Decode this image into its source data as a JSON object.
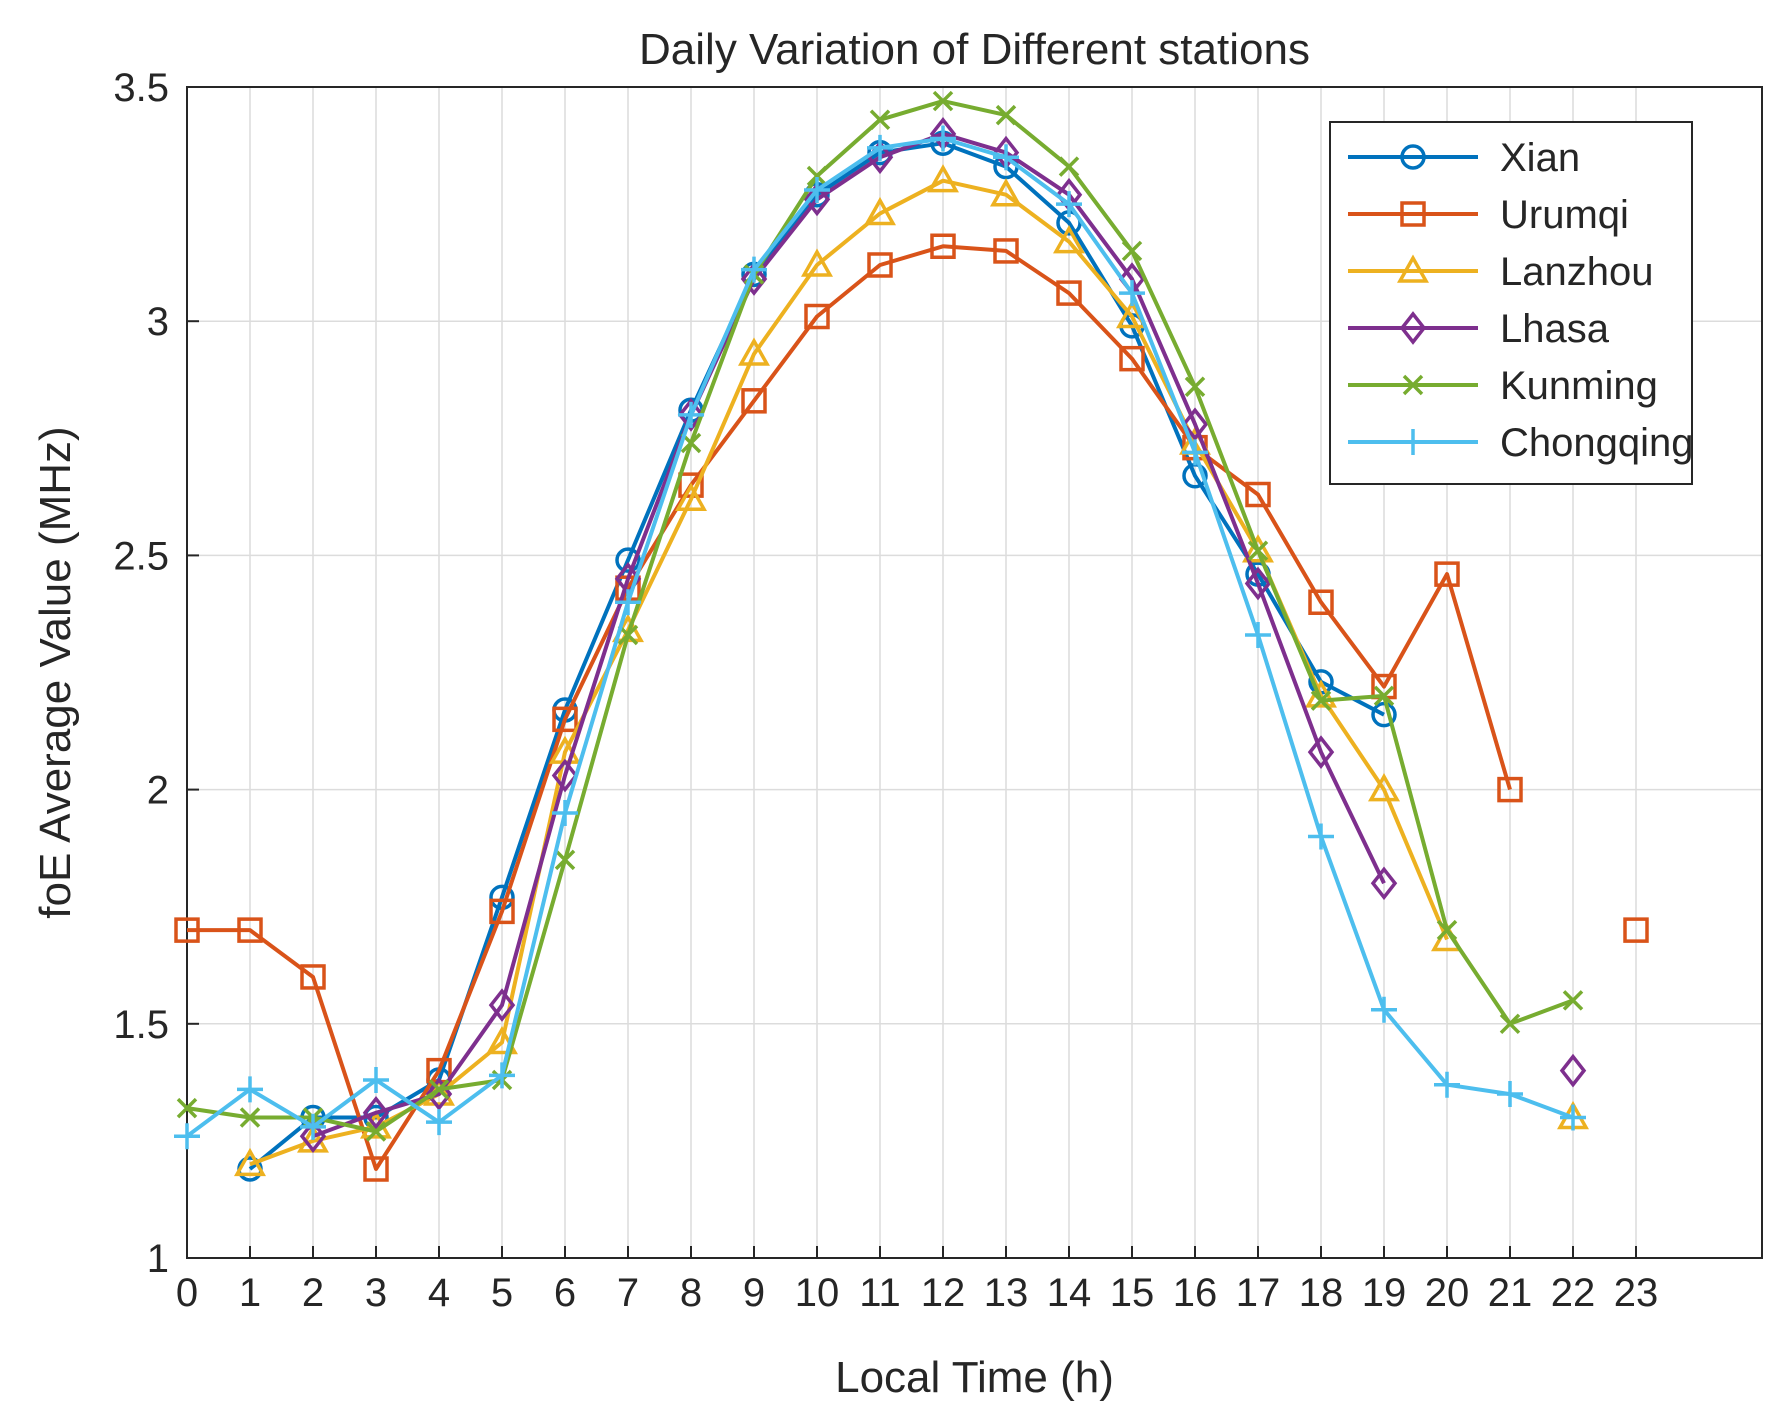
{
  "chart_data": {
    "type": "line",
    "title": "Daily Variation of Different stations",
    "xlabel": "Local Time (h)",
    "ylabel": "foE Average Value (MHz)",
    "xlim": [
      0,
      25
    ],
    "ylim": [
      1,
      3.5
    ],
    "grid": true,
    "legend_position": "top-right",
    "x_ticks": [
      0,
      1,
      2,
      3,
      4,
      5,
      6,
      7,
      8,
      9,
      10,
      11,
      12,
      13,
      14,
      15,
      16,
      17,
      18,
      19,
      20,
      21,
      22,
      23
    ],
    "y_ticks": [
      1,
      1.5,
      2,
      2.5,
      3,
      3.5
    ],
    "y_tick_labels": [
      "1",
      "1.5",
      "2",
      "2.5",
      "3",
      "3.5"
    ],
    "series": [
      {
        "name": "Xian",
        "color": "#0072BD",
        "marker": "circle",
        "x": [
          1,
          2,
          3,
          4,
          5,
          6,
          7,
          8,
          9,
          10,
          11,
          12,
          13,
          14,
          15,
          16,
          17,
          18,
          19
        ],
        "values": [
          1.19,
          1.3,
          1.3,
          1.38,
          1.77,
          2.17,
          2.49,
          2.81,
          3.1,
          3.27,
          3.36,
          3.38,
          3.33,
          3.21,
          2.99,
          2.67,
          2.46,
          2.23,
          2.16
        ]
      },
      {
        "name": "Urumqi",
        "color": "#D95319",
        "marker": "square",
        "x": [
          0,
          1,
          2,
          3,
          4,
          5,
          6,
          7,
          8,
          9,
          10,
          11,
          12,
          13,
          14,
          15,
          16,
          17,
          18,
          19,
          20,
          21,
          23
        ],
        "values": [
          1.7,
          1.7,
          1.6,
          1.19,
          1.4,
          1.74,
          2.15,
          2.43,
          2.65,
          2.83,
          3.01,
          3.12,
          3.16,
          3.15,
          3.06,
          2.92,
          2.73,
          2.63,
          2.4,
          2.22,
          2.46,
          2.0,
          1.7
        ],
        "segment_breaks_after": [
          21
        ]
      },
      {
        "name": "Lanzhou",
        "color": "#EDB120",
        "marker": "triangle",
        "x": [
          1,
          2,
          3,
          4,
          5,
          6,
          7,
          8,
          9,
          10,
          11,
          12,
          13,
          14,
          15,
          16,
          17,
          18,
          19,
          20,
          22
        ],
        "values": [
          1.2,
          1.25,
          1.28,
          1.35,
          1.46,
          2.08,
          2.34,
          2.62,
          2.93,
          3.12,
          3.23,
          3.3,
          3.27,
          3.17,
          3.01,
          2.74,
          2.51,
          2.2,
          2.0,
          1.68,
          1.3
        ],
        "segment_breaks_after": [
          20
        ]
      },
      {
        "name": "Lhasa",
        "color": "#7E2F8E",
        "marker": "diamond",
        "x": [
          2,
          3,
          4,
          5,
          6,
          7,
          8,
          9,
          10,
          11,
          12,
          13,
          14,
          15,
          16,
          17,
          18,
          19,
          22
        ],
        "values": [
          1.26,
          1.31,
          1.35,
          1.54,
          2.03,
          2.45,
          2.8,
          3.09,
          3.26,
          3.35,
          3.4,
          3.36,
          3.27,
          3.09,
          2.78,
          2.44,
          2.08,
          1.8,
          1.4
        ],
        "segment_breaks_after": [
          19
        ]
      },
      {
        "name": "Kunming",
        "color": "#77AC30",
        "marker": "x",
        "x": [
          0,
          1,
          2,
          3,
          4,
          5,
          6,
          7,
          8,
          9,
          10,
          11,
          12,
          13,
          14,
          15,
          16,
          17,
          18,
          19,
          20,
          21,
          22
        ],
        "values": [
          1.32,
          1.3,
          1.3,
          1.27,
          1.36,
          1.38,
          1.85,
          2.33,
          2.74,
          3.1,
          3.31,
          3.43,
          3.47,
          3.44,
          3.33,
          3.15,
          2.86,
          2.51,
          2.19,
          2.2,
          1.7,
          1.5,
          1.55
        ]
      },
      {
        "name": "Chongqing",
        "color": "#4DBEEE",
        "marker": "plus",
        "x": [
          0,
          1,
          2,
          3,
          4,
          5,
          6,
          7,
          8,
          9,
          10,
          11,
          12,
          13,
          14,
          15,
          16,
          17,
          18,
          19,
          20,
          21,
          22
        ],
        "values": [
          1.26,
          1.36,
          1.28,
          1.38,
          1.29,
          1.39,
          1.95,
          2.4,
          2.8,
          3.11,
          3.28,
          3.37,
          3.39,
          3.35,
          3.25,
          3.06,
          2.72,
          2.33,
          1.9,
          1.53,
          1.37,
          1.35,
          1.3
        ]
      }
    ]
  }
}
